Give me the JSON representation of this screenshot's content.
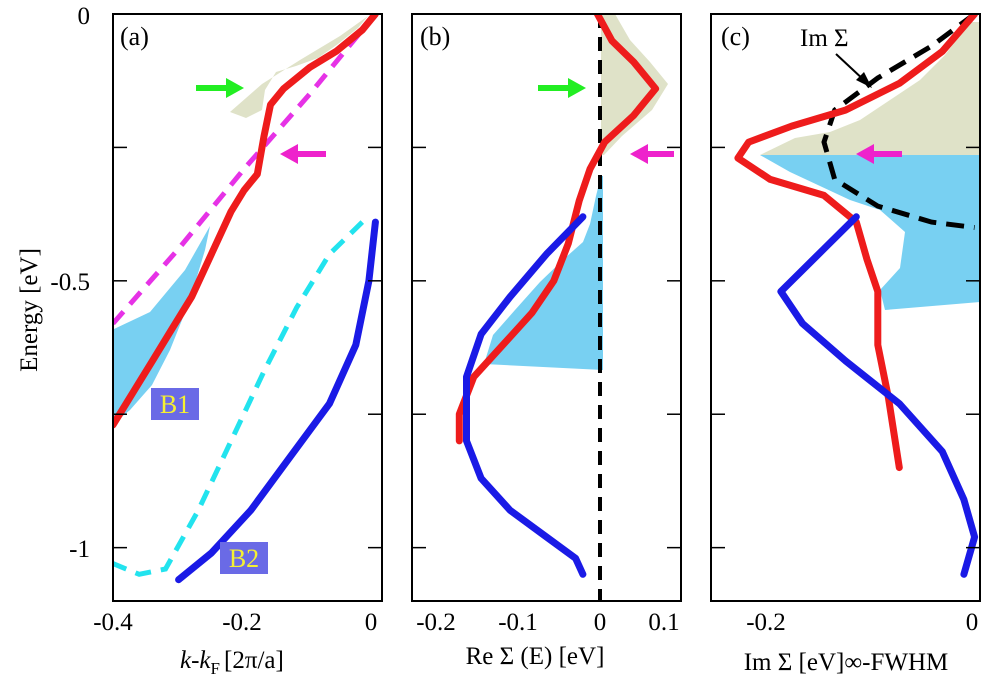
{
  "y_axis": {
    "label": "Energy [eV]",
    "ticks": [
      "0",
      "-0.5",
      "-1"
    ]
  },
  "panels": [
    {
      "label": "(a)",
      "xlabel_main": "k-k",
      "xlabel_sub": "F",
      "xlabel_unit": "[2π/a]",
      "xticks": [
        "-0.4",
        "-0.2",
        "0"
      ],
      "badges": [
        "B1",
        "B2"
      ]
    },
    {
      "label": "(b)",
      "xlabel": "Re Σ (E) [eV]",
      "xticks": [
        "-0.2",
        "-0.1",
        "0",
        "0.1"
      ]
    },
    {
      "label": "(c)",
      "xlabel": "Im Σ [eV]∞-FWHM",
      "xticks": [
        "-0.2",
        "0"
      ],
      "annotation": "Im Σ"
    }
  ],
  "colors": {
    "red": "#ee1c1c",
    "blue": "#1a1ae6",
    "cyan": "#22e3ee",
    "magenta": "#e632e6",
    "green_arrow": "#22ee22",
    "magenta_arrow": "#ee22cc",
    "olive_fill": "#dfe2c8",
    "sky_fill": "#78d0f2",
    "badge_bg": "#6a6ae6",
    "badge_text": "#f5f032"
  },
  "chart_data": [
    {
      "type": "line",
      "panel": "(a)",
      "xlabel": "k-kF [2π/a]",
      "ylabel": "Energy [eV]",
      "xlim": [
        -0.4,
        0.01
      ],
      "ylim": [
        -1.1,
        0
      ],
      "series": [
        {
          "name": "B1",
          "style": "solid",
          "color": "red",
          "x": [
            0,
            -0.02,
            -0.06,
            -0.1,
            -0.14,
            -0.16,
            -0.17,
            -0.18,
            -0.2,
            -0.22,
            -0.25,
            -0.28,
            -0.31,
            -0.34,
            -0.37,
            -0.4
          ],
          "y": [
            0,
            -0.03,
            -0.07,
            -0.1,
            -0.14,
            -0.17,
            -0.23,
            -0.3,
            -0.33,
            -0.37,
            -0.45,
            -0.53,
            -0.59,
            -0.65,
            -0.71,
            -0.77
          ]
        },
        {
          "style": "dashed",
          "color": "magenta",
          "x": [
            0,
            -0.1,
            -0.2,
            -0.3,
            -0.4
          ],
          "y": [
            0,
            -0.15,
            -0.29,
            -0.44,
            -0.58
          ]
        },
        {
          "name": "B2",
          "style": "solid",
          "color": "blue",
          "x": [
            0,
            -0.01,
            -0.03,
            -0.07,
            -0.13,
            -0.19,
            -0.25,
            -0.3
          ],
          "y": [
            -0.39,
            -0.5,
            -0.62,
            -0.73,
            -0.83,
            -0.93,
            -1.01,
            -1.06
          ]
        },
        {
          "style": "dashed",
          "color": "cyan",
          "x": [
            -0.02,
            -0.07,
            -0.12,
            -0.17,
            -0.22,
            -0.27,
            -0.32,
            -0.36,
            -0.4
          ],
          "y": [
            -0.39,
            -0.45,
            -0.55,
            -0.67,
            -0.8,
            -0.93,
            -1.04,
            -1.05,
            -1.03
          ]
        }
      ]
    },
    {
      "type": "line",
      "panel": "(b)",
      "xlabel": "Re Σ (E) [eV]",
      "xlim": [
        -0.245,
        0.125
      ],
      "ylim": [
        -1.1,
        0
      ],
      "series": [
        {
          "style": "solid",
          "color": "red",
          "x": [
            0.01,
            0.03,
            0.06,
            0.09,
            0.06,
            0.02,
            0,
            -0.015,
            -0.03,
            -0.05,
            -0.08,
            -0.12,
            -0.16,
            -0.18,
            -0.18
          ],
          "y": [
            0,
            -0.05,
            -0.09,
            -0.14,
            -0.19,
            -0.24,
            -0.29,
            -0.35,
            -0.43,
            -0.5,
            -0.56,
            -0.62,
            -0.68,
            -0.75,
            -0.8
          ]
        },
        {
          "style": "solid",
          "color": "blue",
          "x": [
            -0.01,
            -0.06,
            -0.11,
            -0.15,
            -0.17,
            -0.17,
            -0.15,
            -0.11,
            -0.06,
            -0.02,
            -0.01
          ],
          "y": [
            -0.38,
            -0.45,
            -0.53,
            -0.6,
            -0.68,
            -0.8,
            -0.87,
            -0.93,
            -0.98,
            -1.02,
            -1.05
          ]
        }
      ]
    },
    {
      "type": "line",
      "panel": "(c)",
      "xlabel": "Im Σ [eV]∞-FWHM",
      "xlim": [
        -0.245,
        0.005
      ],
      "ylim": [
        -1.1,
        0
      ],
      "series": [
        {
          "style": "solid",
          "color": "red",
          "x": [
            0,
            -0.03,
            -0.07,
            -0.12,
            -0.17,
            -0.21,
            -0.22,
            -0.19,
            -0.14,
            -0.11,
            -0.1,
            -0.09,
            -0.09,
            -0.08,
            -0.07
          ],
          "y": [
            0,
            -0.07,
            -0.13,
            -0.18,
            -0.21,
            -0.24,
            -0.27,
            -0.31,
            -0.34,
            -0.39,
            -0.46,
            -0.52,
            -0.62,
            -0.72,
            -0.85
          ]
        },
        {
          "style": "solid",
          "color": "blue",
          "x": [
            -0.11,
            -0.14,
            -0.18,
            -0.16,
            -0.12,
            -0.07,
            -0.03,
            -0.01,
            0,
            -0.01
          ],
          "y": [
            -0.38,
            -0.44,
            -0.52,
            -0.58,
            -0.65,
            -0.73,
            -0.82,
            -0.91,
            -0.98,
            -1.05
          ]
        },
        {
          "name": "Im Σ",
          "style": "dashed",
          "color": "black",
          "x": [
            0,
            -0.04,
            -0.09,
            -0.13,
            -0.14,
            -0.13,
            -0.09,
            -0.04,
            0
          ],
          "y": [
            0,
            -0.06,
            -0.12,
            -0.18,
            -0.24,
            -0.31,
            -0.36,
            -0.39,
            -0.4
          ]
        }
      ]
    }
  ]
}
